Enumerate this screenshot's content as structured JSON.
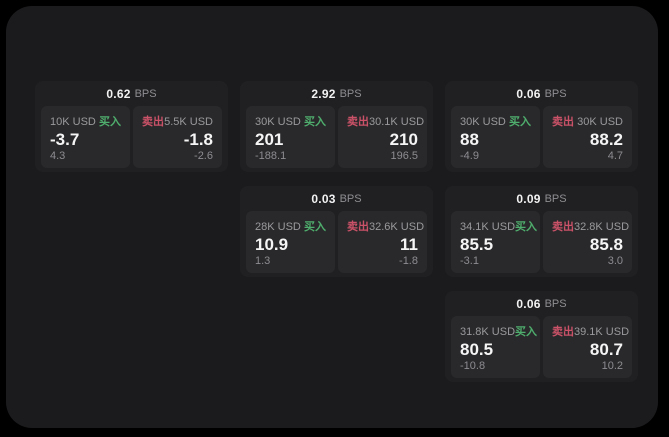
{
  "labels": {
    "bps_unit": "BPS",
    "buy": "买入",
    "sell": "卖出"
  },
  "colors": {
    "buy": "#4fae6d",
    "sell": "#cb5268",
    "panel_background": "#1b1b1d",
    "card_background": "#202022",
    "tile_background": "#29292b"
  },
  "cards": [
    {
      "bps": "0.62",
      "buy": {
        "size": "10K USD",
        "price": "-3.7",
        "delta": "4.3"
      },
      "sell": {
        "size": "5.5K USD",
        "price": "-1.8",
        "delta": "-2.6"
      }
    },
    {
      "bps": "2.92",
      "buy": {
        "size": "30K USD",
        "price": "201",
        "delta": "-188.1"
      },
      "sell": {
        "size": "30.1K USD",
        "price": "210",
        "delta": "196.5"
      }
    },
    {
      "bps": "0.06",
      "buy": {
        "size": "30K USD",
        "price": "88",
        "delta": "-4.9"
      },
      "sell": {
        "size": "30K USD",
        "price": "88.2",
        "delta": "4.7"
      }
    },
    {
      "bps": "0.03",
      "buy": {
        "size": "28K USD",
        "price": "10.9",
        "delta": "1.3"
      },
      "sell": {
        "size": "32.6K USD",
        "price": "11",
        "delta": "-1.8"
      }
    },
    {
      "bps": "0.09",
      "buy": {
        "size": "34.1K USD",
        "price": "85.5",
        "delta": "-3.1"
      },
      "sell": {
        "size": "32.8K USD",
        "price": "85.8",
        "delta": "3.0"
      }
    },
    {
      "bps": "0.06",
      "buy": {
        "size": "31.8K USD",
        "price": "80.5",
        "delta": "-10.8"
      },
      "sell": {
        "size": "39.1K USD",
        "price": "80.7",
        "delta": "10.2"
      }
    }
  ]
}
